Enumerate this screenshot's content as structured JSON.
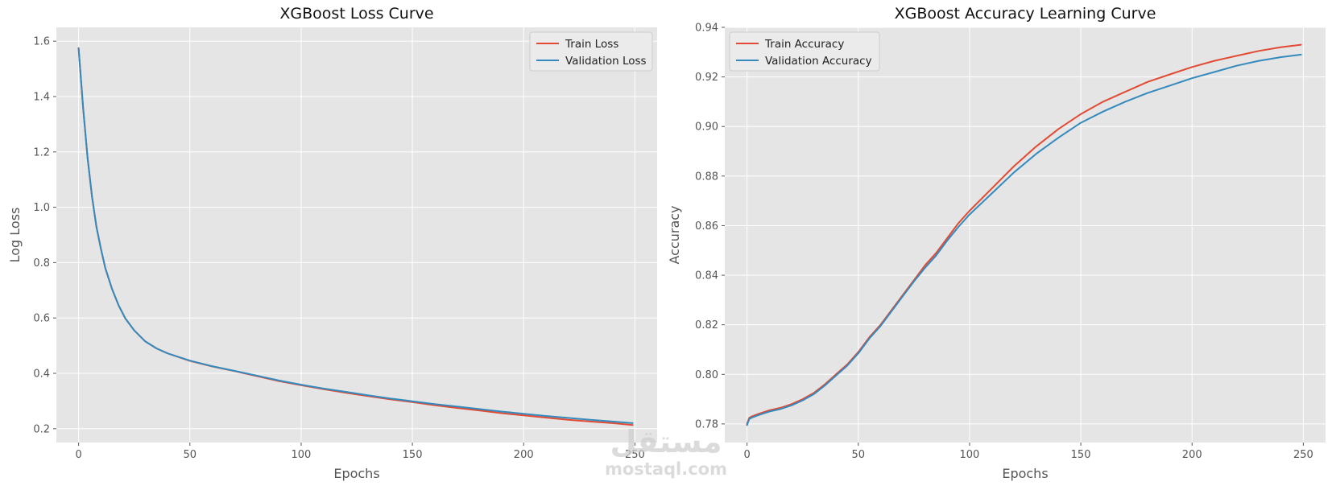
{
  "watermark": {
    "main": "مستقل",
    "sub": "mostaql.com"
  },
  "colors": {
    "train": "#E24A33",
    "validation": "#348ABD",
    "plot_bg": "#E5E5E5",
    "grid": "#FFFFFF",
    "text": "#555555"
  },
  "chart_data": [
    {
      "type": "line",
      "title": "XGBoost Loss Curve",
      "xlabel": "Epochs",
      "ylabel": "Log Loss",
      "xlim": [
        -10,
        260
      ],
      "ylim": [
        0.15,
        1.65
      ],
      "xticks": [
        0,
        50,
        100,
        150,
        200,
        250
      ],
      "yticks": [
        0.2,
        0.4,
        0.6,
        0.8,
        1.0,
        1.2,
        1.4,
        1.6
      ],
      "xtick_labels": [
        "0",
        "50",
        "100",
        "150",
        "200",
        "250"
      ],
      "ytick_labels": [
        "0.2",
        "0.4",
        "0.6",
        "0.8",
        "1.0",
        "1.2",
        "1.4",
        "1.6"
      ],
      "grid": true,
      "legend": "top-right",
      "x": [
        0,
        2,
        4,
        6,
        8,
        10,
        12,
        15,
        18,
        21,
        25,
        30,
        35,
        40,
        50,
        60,
        70,
        80,
        90,
        100,
        110,
        120,
        130,
        140,
        150,
        160,
        170,
        180,
        190,
        200,
        210,
        220,
        230,
        240,
        249
      ],
      "series": [
        {
          "name": "Train Loss",
          "color": "#E24A33",
          "values": [
            1.575,
            1.36,
            1.18,
            1.04,
            0.93,
            0.85,
            0.78,
            0.705,
            0.645,
            0.598,
            0.555,
            0.515,
            0.49,
            0.472,
            0.445,
            0.425,
            0.408,
            0.39,
            0.372,
            0.357,
            0.343,
            0.33,
            0.318,
            0.306,
            0.296,
            0.285,
            0.275,
            0.266,
            0.256,
            0.248,
            0.24,
            0.232,
            0.226,
            0.22,
            0.213
          ]
        },
        {
          "name": "Validation Loss",
          "color": "#348ABD",
          "values": [
            1.575,
            1.36,
            1.18,
            1.04,
            0.93,
            0.85,
            0.78,
            0.705,
            0.645,
            0.598,
            0.555,
            0.515,
            0.49,
            0.472,
            0.446,
            0.426,
            0.409,
            0.392,
            0.374,
            0.359,
            0.345,
            0.333,
            0.321,
            0.309,
            0.299,
            0.289,
            0.28,
            0.271,
            0.262,
            0.254,
            0.246,
            0.239,
            0.232,
            0.226,
            0.22
          ]
        }
      ]
    },
    {
      "type": "line",
      "title": "XGBoost Accuracy Learning Curve",
      "xlabel": "Epochs",
      "ylabel": "Accuracy",
      "xlim": [
        -10,
        260
      ],
      "ylim": [
        0.7725,
        0.94
      ],
      "xticks": [
        0,
        50,
        100,
        150,
        200,
        250
      ],
      "yticks": [
        0.78,
        0.8,
        0.82,
        0.84,
        0.86,
        0.88,
        0.9,
        0.92,
        0.94
      ],
      "xtick_labels": [
        "0",
        "50",
        "100",
        "150",
        "200",
        "250"
      ],
      "ytick_labels": [
        "0.78",
        "0.80",
        "0.82",
        "0.84",
        "0.86",
        "0.88",
        "0.90",
        "0.92",
        "0.94"
      ],
      "grid": true,
      "legend": "top-left",
      "x": [
        0,
        1,
        2,
        5,
        10,
        15,
        20,
        25,
        30,
        35,
        40,
        45,
        50,
        55,
        60,
        65,
        70,
        75,
        80,
        85,
        90,
        95,
        100,
        110,
        120,
        130,
        140,
        150,
        160,
        170,
        180,
        190,
        200,
        210,
        220,
        230,
        240,
        249
      ],
      "series": [
        {
          "name": "Train Accuracy",
          "color": "#E24A33",
          "values": [
            0.78,
            0.7825,
            0.783,
            0.784,
            0.7855,
            0.7865,
            0.788,
            0.79,
            0.7925,
            0.796,
            0.8,
            0.804,
            0.809,
            0.815,
            0.82,
            0.826,
            0.832,
            0.838,
            0.844,
            0.849,
            0.855,
            0.861,
            0.866,
            0.875,
            0.884,
            0.892,
            0.899,
            0.905,
            0.91,
            0.914,
            0.918,
            0.921,
            0.924,
            0.9265,
            0.9285,
            0.9305,
            0.932,
            0.933
          ]
        },
        {
          "name": "Validation Accuracy",
          "color": "#348ABD",
          "values": [
            0.7795,
            0.782,
            0.7825,
            0.7835,
            0.785,
            0.786,
            0.7875,
            0.7895,
            0.792,
            0.7955,
            0.7995,
            0.8035,
            0.8085,
            0.8145,
            0.8195,
            0.8255,
            0.8315,
            0.8375,
            0.843,
            0.848,
            0.854,
            0.8595,
            0.8645,
            0.873,
            0.8815,
            0.889,
            0.8955,
            0.9015,
            0.906,
            0.91,
            0.9135,
            0.9165,
            0.9195,
            0.922,
            0.9245,
            0.9265,
            0.928,
            0.929
          ]
        }
      ]
    }
  ]
}
